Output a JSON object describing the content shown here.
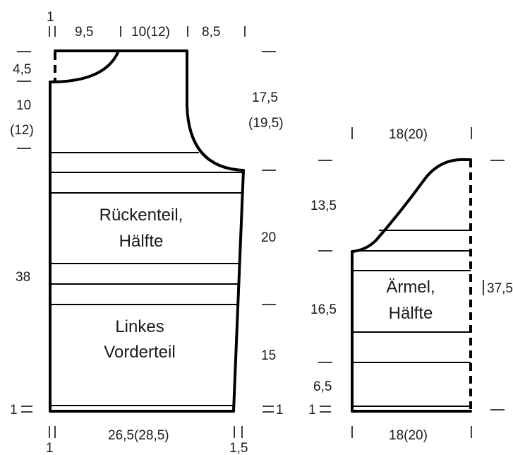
{
  "back": {
    "label_line1": "Rückenteil,",
    "label_line2": "Hälfte",
    "front_line1": "Linkes",
    "front_line2": "Vorderteil",
    "top": {
      "edge": "1",
      "shoulder": "9,5",
      "neck": "10(12)",
      "armhole": "8,5"
    },
    "left": {
      "neck_drop": "4,5",
      "upper_a": "10",
      "upper_b": "(12)",
      "body": "38",
      "hem": "1"
    },
    "right": {
      "armhole_a": "17,5",
      "armhole_b": "(19,5)",
      "middle": "20",
      "lower": "15",
      "hem": "1"
    },
    "bottom": {
      "width": "26,5(28,5)",
      "edge_left": "1",
      "edge_right": "1,5"
    }
  },
  "sleeve": {
    "label_line1": "Ärmel,",
    "label_line2": "Hälfte",
    "top_width": "18(20)",
    "bottom_width": "18(20)",
    "cap": "13,5",
    "middle": "16,5",
    "cuff": "6,5",
    "hem": "1",
    "total": "37,5"
  }
}
